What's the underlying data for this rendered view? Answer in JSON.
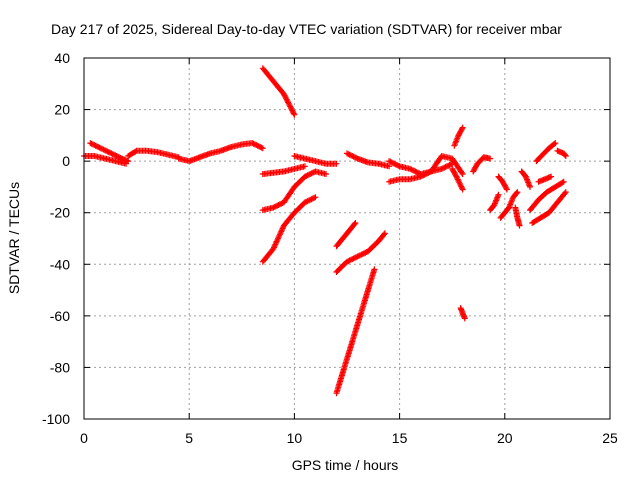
{
  "chart_data": {
    "type": "scatter",
    "title": "Day 217 of 2025, Sidereal Day-to-day VTEC variation (SDTVAR) for receiver mbar",
    "xlabel": "GPS time / hours",
    "ylabel": "SDTVAR / TECUs",
    "xlim": [
      0,
      25
    ],
    "ylim": [
      -100,
      40
    ],
    "xticks": [
      0,
      5,
      10,
      15,
      20,
      25
    ],
    "yticks": [
      -100,
      -80,
      -60,
      -40,
      -20,
      0,
      20,
      40
    ],
    "xtick_labels": [
      "0",
      "5",
      "10",
      "15",
      "20",
      "25"
    ],
    "ytick_labels": [
      "-100",
      "-80",
      "-60",
      "-40",
      "-20",
      "0",
      "20",
      "40"
    ],
    "grid": true,
    "marker": "plus",
    "series_color": "#ff0000",
    "segments": [
      {
        "name": "a",
        "points": [
          [
            0,
            2
          ],
          [
            0.5,
            2
          ],
          [
            1,
            1
          ],
          [
            1.5,
            0
          ],
          [
            2,
            -1
          ]
        ]
      },
      {
        "name": "b",
        "points": [
          [
            0.3,
            7
          ],
          [
            0.8,
            5
          ],
          [
            1.3,
            3
          ],
          [
            1.8,
            1
          ],
          [
            2.1,
            0
          ]
        ]
      },
      {
        "name": "c",
        "points": [
          [
            2.1,
            2
          ],
          [
            2.5,
            4
          ],
          [
            3,
            4
          ],
          [
            3.5,
            3.5
          ],
          [
            4,
            2.5
          ],
          [
            4.5,
            1.5
          ]
        ]
      },
      {
        "name": "d",
        "points": [
          [
            4.5,
            1
          ],
          [
            5,
            0
          ],
          [
            5.5,
            1.5
          ],
          [
            6,
            3
          ],
          [
            6.5,
            4
          ],
          [
            7,
            5.5
          ],
          [
            7.5,
            6.5
          ],
          [
            8,
            7
          ],
          [
            8.5,
            5
          ]
        ]
      },
      {
        "name": "e",
        "points": [
          [
            8.5,
            36
          ],
          [
            9,
            31
          ],
          [
            9.5,
            26
          ],
          [
            10,
            18
          ]
        ]
      },
      {
        "name": "f",
        "points": [
          [
            8.5,
            -19
          ],
          [
            9,
            -18
          ],
          [
            9.5,
            -16
          ],
          [
            10,
            -10
          ],
          [
            10.5,
            -6
          ],
          [
            11,
            -4
          ],
          [
            11.5,
            -5
          ]
        ]
      },
      {
        "name": "g",
        "points": [
          [
            8.5,
            -39
          ],
          [
            9,
            -34
          ],
          [
            9.5,
            -25
          ],
          [
            10,
            -20
          ],
          [
            10.5,
            -16
          ],
          [
            11,
            -14
          ]
        ]
      },
      {
        "name": "h",
        "points": [
          [
            8.5,
            -5
          ],
          [
            9,
            -4.5
          ],
          [
            9.5,
            -4
          ],
          [
            10,
            -3
          ],
          [
            10.5,
            -2
          ]
        ]
      },
      {
        "name": "i",
        "points": [
          [
            10,
            2
          ],
          [
            10.5,
            1
          ],
          [
            11,
            0
          ],
          [
            11.5,
            -1
          ],
          [
            12,
            -1
          ]
        ]
      },
      {
        "name": "j",
        "points": [
          [
            12,
            -33
          ],
          [
            12.3,
            -30
          ],
          [
            12.6,
            -27
          ],
          [
            12.9,
            -24
          ]
        ]
      },
      {
        "name": "k",
        "points": [
          [
            12,
            -43
          ],
          [
            12.5,
            -39
          ],
          [
            13,
            -37
          ],
          [
            13.5,
            -35
          ],
          [
            14,
            -31
          ],
          [
            14.3,
            -28
          ]
        ]
      },
      {
        "name": "l",
        "points": [
          [
            12,
            -90
          ],
          [
            12.3,
            -82
          ],
          [
            12.6,
            -74
          ],
          [
            12.9,
            -66
          ],
          [
            13.2,
            -58
          ],
          [
            13.5,
            -50
          ],
          [
            13.8,
            -42
          ]
        ]
      },
      {
        "name": "m",
        "points": [
          [
            12.5,
            3
          ],
          [
            13,
            1
          ],
          [
            13.5,
            -0.5
          ],
          [
            14,
            -1
          ],
          [
            14.5,
            -2
          ]
        ]
      },
      {
        "name": "n",
        "points": [
          [
            14.5,
            -8
          ],
          [
            15,
            -7
          ],
          [
            15.5,
            -7
          ],
          [
            16,
            -6
          ],
          [
            16.5,
            -4
          ],
          [
            17,
            -3
          ],
          [
            17.5,
            -1
          ]
        ]
      },
      {
        "name": "o",
        "points": [
          [
            14.5,
            0
          ],
          [
            15,
            -2
          ],
          [
            15.5,
            -3
          ],
          [
            16,
            -5
          ],
          [
            16.5,
            -4
          ],
          [
            17,
            2
          ],
          [
            17.5,
            1
          ],
          [
            18,
            -5
          ]
        ]
      },
      {
        "name": "p",
        "points": [
          [
            17.6,
            6
          ],
          [
            17.8,
            10
          ],
          [
            18,
            13
          ]
        ]
      },
      {
        "name": "q",
        "points": [
          [
            17.5,
            -3
          ],
          [
            17.7,
            -6
          ],
          [
            18,
            -11
          ]
        ]
      },
      {
        "name": "r",
        "points": [
          [
            17.9,
            -57
          ],
          [
            18,
            -59
          ],
          [
            18.1,
            -61
          ]
        ]
      },
      {
        "name": "s",
        "points": [
          [
            18.5,
            -4
          ],
          [
            18.7,
            -1
          ],
          [
            19,
            1.5
          ],
          [
            19.3,
            1
          ]
        ]
      },
      {
        "name": "t",
        "points": [
          [
            19.3,
            -19
          ],
          [
            19.5,
            -17
          ],
          [
            19.7,
            -13
          ]
        ]
      },
      {
        "name": "u",
        "points": [
          [
            19.7,
            -6
          ],
          [
            19.9,
            -8
          ],
          [
            20.1,
            -11
          ]
        ]
      },
      {
        "name": "v",
        "points": [
          [
            19.8,
            -22
          ],
          [
            20,
            -20
          ],
          [
            20.2,
            -18
          ],
          [
            20.4,
            -14
          ],
          [
            20.6,
            -12
          ]
        ]
      },
      {
        "name": "w",
        "points": [
          [
            20.5,
            -18
          ],
          [
            20.6,
            -22
          ],
          [
            20.7,
            -25
          ]
        ]
      },
      {
        "name": "x",
        "points": [
          [
            20.8,
            -4
          ],
          [
            21,
            -6
          ],
          [
            21.2,
            -10
          ]
        ]
      },
      {
        "name": "y",
        "points": [
          [
            21.3,
            -24
          ],
          [
            21.7,
            -22
          ],
          [
            22.1,
            -20
          ],
          [
            22.5,
            -16
          ],
          [
            22.9,
            -12
          ]
        ]
      },
      {
        "name": "z",
        "points": [
          [
            21.2,
            -19
          ],
          [
            21.6,
            -15
          ],
          [
            22,
            -12
          ],
          [
            22.4,
            -10
          ],
          [
            22.8,
            -8
          ]
        ]
      },
      {
        "name": "aa",
        "points": [
          [
            21.5,
            0
          ],
          [
            21.8,
            2.5
          ],
          [
            22.1,
            5
          ],
          [
            22.4,
            7
          ]
        ]
      },
      {
        "name": "ab",
        "points": [
          [
            22.5,
            4
          ],
          [
            22.8,
            3
          ],
          [
            22.9,
            2
          ]
        ]
      },
      {
        "name": "ac",
        "points": [
          [
            21.6,
            -8
          ],
          [
            21.9,
            -7
          ],
          [
            22.2,
            -6
          ]
        ]
      }
    ]
  }
}
